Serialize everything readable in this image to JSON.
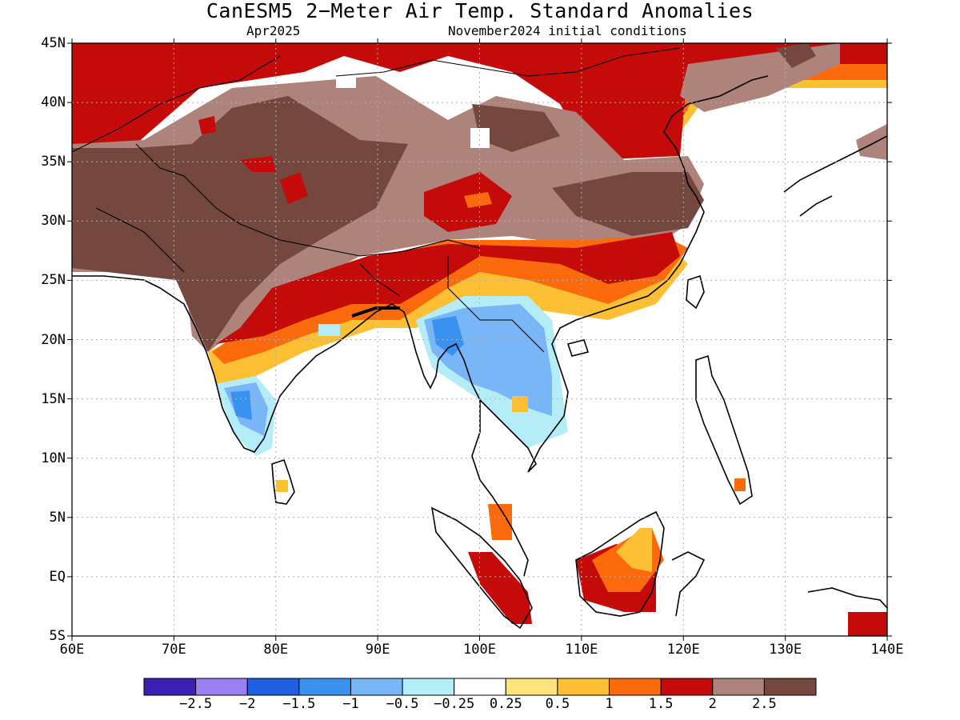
{
  "title": "CanESM5 2−Meter Air Temp. Standard Anomalies",
  "valid_month": "Apr2025",
  "initial_conditions": "November2024 initial conditions",
  "latitude_labels": [
    "45N",
    "40N",
    "35N",
    "30N",
    "25N",
    "20N",
    "15N",
    "10N",
    "5N",
    "EQ",
    "5S"
  ],
  "longitude_labels": [
    "60E",
    "70E",
    "80E",
    "90E",
    "100E",
    "110E",
    "120E",
    "130E",
    "140E"
  ],
  "map_extent": {
    "lon": [
      60,
      140
    ],
    "lat": [
      -5,
      45
    ]
  },
  "grid": "dotted",
  "colorbar": {
    "colors": [
      "#3c1fb4",
      "#9b80f4",
      "#1e5fe4",
      "#3a92f0",
      "#78b6f7",
      "#b4ecf8",
      "#ffffff",
      "#fee47a",
      "#fdbf34",
      "#fb6a0c",
      "#c50a0a",
      "#ad837c",
      "#74483e"
    ],
    "labels": [
      "−2.5",
      "−2",
      "−1.5",
      "−1",
      "−0.5",
      "−0.25",
      "0.25",
      "0.5",
      "1",
      "1.5",
      "2",
      "2.5"
    ]
  },
  "colors": {
    "land_outline": "#000000",
    "frame": "#000000",
    "grid": "#b0b0b0"
  }
}
